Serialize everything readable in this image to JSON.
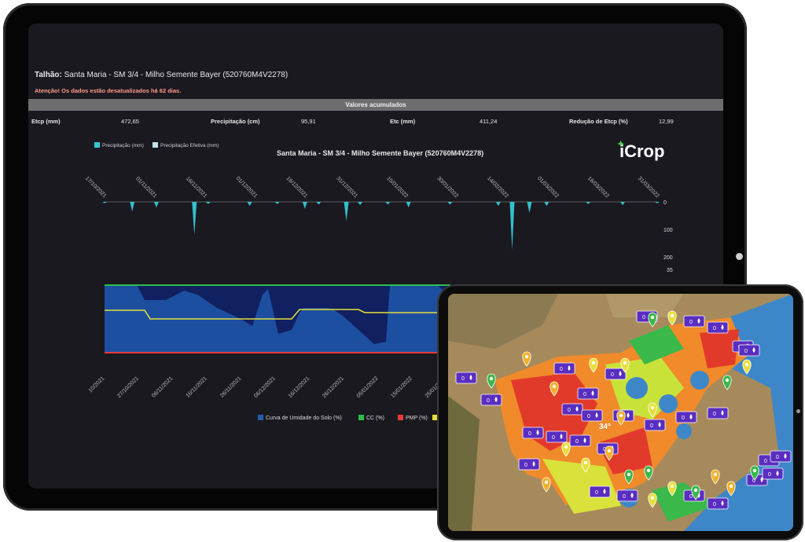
{
  "dashboard": {
    "talhao_label": "Talhão:",
    "talhao_value": "Santa Maria - SM 3/4 - Milho Semente Bayer (520760M4V2278)",
    "warning": "Atenção! Os dados estão desatualizados há 62 dias.",
    "section_header": "Valores acumulados",
    "stats": [
      {
        "label": "Etcp (mm)",
        "value": "472,65"
      },
      {
        "label": "Precipitação (cm)",
        "value": "95,91"
      },
      {
        "label": "Etc (mm)",
        "value": "411,24"
      },
      {
        "label": "Redução de Etcp (%)",
        "value": "12,99"
      }
    ],
    "logo_text": "iCrop"
  },
  "chart_data": [
    {
      "type": "area",
      "title": "Santa Maria - SM 3/4 - Milho Semente Bayer (520760M4V2278)",
      "legend": [
        {
          "name": "Precipitação (mm)",
          "color": "#35c9d6"
        },
        {
          "name": "Precipitação Efetiva (mm)",
          "color": "#bfe4ea"
        }
      ],
      "x_ticks": [
        "17/10/2021",
        "01/11/2021",
        "16/11/2021",
        "01/12/2021",
        "16/12/2021",
        "31/12/2021",
        "15/01/2022",
        "30/01/2022",
        "14/02/2022",
        "01/03/2022",
        "16/03/2022",
        "31/03/2022"
      ],
      "y_ticks": [
        "0",
        "100",
        "200"
      ],
      "y_reversed": true,
      "ylim": [
        0,
        200
      ],
      "series": [
        {
          "name": "Precipitação (mm)",
          "x": [
            0,
            8,
            15,
            26,
            30,
            42,
            50,
            58,
            62,
            70,
            74,
            82,
            88,
            100,
            114,
            118,
            123,
            128,
            140,
            150,
            160
          ],
          "y": [
            5,
            35,
            20,
            120,
            8,
            15,
            8,
            25,
            10,
            70,
            12,
            10,
            20,
            10,
            15,
            175,
            40,
            15,
            8,
            12,
            5
          ]
        }
      ]
    },
    {
      "type": "line",
      "legend": [
        {
          "name": "Curva de Umidade do Solo (%)",
          "color": "#1f5fa8"
        },
        {
          "name": "CC (%)",
          "color": "#2bbf4a"
        },
        {
          "name": "PMP (%)",
          "color": "#e83a3a"
        },
        {
          "name": "",
          "color": "#e3e03a"
        }
      ],
      "y_ticks_right": [
        "35"
      ],
      "x_ticks": [
        "10/2021",
        "27/10/2021",
        "06/11/2021",
        "16/11/2021",
        "26/11/2021",
        "06/12/2021",
        "16/12/2021",
        "26/12/2021",
        "05/01/2022",
        "15/01/2022",
        "25/01/2022"
      ]
    }
  ],
  "map": {
    "temperature": "34°",
    "badge_text": "0 mm"
  }
}
